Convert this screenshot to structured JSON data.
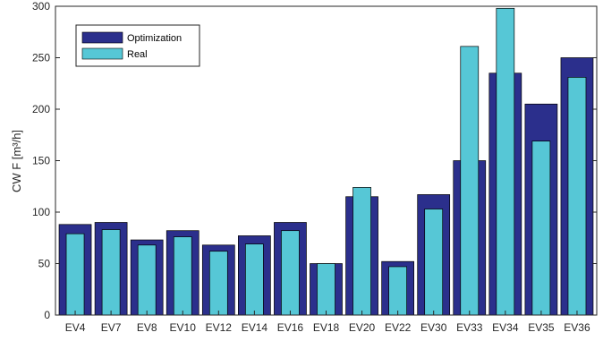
{
  "chart_data": {
    "type": "bar",
    "title": "",
    "xlabel": "",
    "ylabel": "CW F [m³/h]",
    "ylim": [
      0,
      300
    ],
    "yticks": [
      0,
      50,
      100,
      150,
      200,
      250,
      300
    ],
    "grid": false,
    "legend_position": "top-left",
    "categories": [
      "EV4",
      "EV7",
      "EV8",
      "EV10",
      "EV12",
      "EV14",
      "EV16",
      "EV18",
      "EV20",
      "EV22",
      "EV30",
      "EV33",
      "EV34",
      "EV35",
      "EV36"
    ],
    "series": [
      {
        "name": "Optimization",
        "color": "#2b2f8c",
        "values": [
          88,
          90,
          73,
          82,
          68,
          77,
          90,
          50,
          115,
          52,
          117,
          150,
          235,
          205,
          250
        ]
      },
      {
        "name": "Real",
        "color": "#56c7d6",
        "values": [
          79,
          83,
          68,
          76,
          62,
          69,
          82,
          50,
          124,
          47,
          103,
          261,
          298,
          169,
          231
        ]
      }
    ]
  }
}
